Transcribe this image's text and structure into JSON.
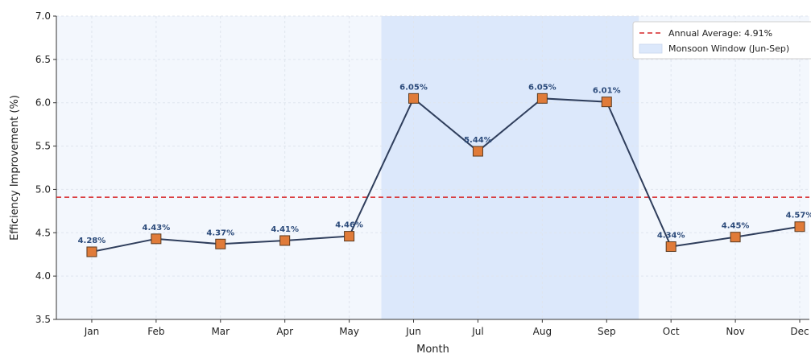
{
  "chart_data": {
    "type": "line",
    "title": "",
    "xlabel": "Month",
    "ylabel": "Efficiency Improvement (%)",
    "categories": [
      "Jan",
      "Feb",
      "Mar",
      "Apr",
      "May",
      "Jun",
      "Jul",
      "Aug",
      "Sep",
      "Oct",
      "Nov",
      "Dec"
    ],
    "series": [
      {
        "values": [
          4.28,
          4.43,
          4.37,
          4.41,
          4.46,
          6.05,
          5.44,
          6.05,
          6.01,
          4.34,
          4.45,
          4.57
        ],
        "labels": [
          "4.28%",
          "4.43%",
          "4.37%",
          "4.41%",
          "4.46%",
          "6.05%",
          "5.44%",
          "6.05%",
          "6.01%",
          "4.34%",
          "4.45%",
          "4.57%"
        ],
        "line_color": "#2f3e5c",
        "marker_color": "#e07b39",
        "marker_edge_color": "#5a3a20"
      }
    ],
    "ylim": [
      3.5,
      7.0
    ],
    "yticks": [
      "3.5",
      "4.0",
      "4.5",
      "5.0",
      "5.5",
      "6.0",
      "6.5",
      "7.0"
    ],
    "reference_line": {
      "value": 4.91,
      "label": "Annual Average: 4.91%",
      "color": "#d62728"
    },
    "shaded_region": {
      "from": "Jun",
      "to": "Sep",
      "label": "Monsoon Window (Jun-Sep)",
      "color": "#dce8fb"
    },
    "background_color": "#f3f7fd",
    "grid": true,
    "legend_position": "top-right"
  }
}
